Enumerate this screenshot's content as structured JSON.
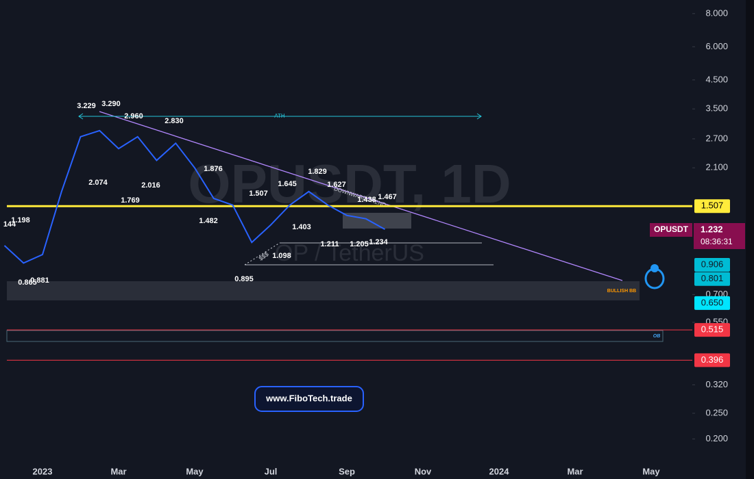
{
  "chart_data": {
    "type": "line",
    "watermark": "OPUSDT, 1D",
    "description": "OP / TetherUS",
    "website": "www.FiboTech.trade",
    "categories": [
      null,
      null,
      "2023",
      null,
      null,
      null,
      "Mar",
      null,
      null,
      null,
      "May",
      null,
      null,
      null,
      "Jul",
      null,
      null,
      null,
      "Sep",
      null,
      null,
      null,
      "Nov",
      null,
      null,
      null,
      "2024",
      null,
      null,
      null,
      "Mar",
      null,
      null,
      null,
      "May",
      null
    ],
    "series": [
      {
        "name": "OPUSDT",
        "color": "#2962ff",
        "values": [
          1.07,
          0.92,
          0.99,
          1.71,
          2.75,
          2.9,
          2.48,
          2.75,
          2.24,
          2.6,
          2.1,
          1.61,
          1.52,
          1.1,
          1.28,
          1.52,
          1.71,
          1.52,
          1.39,
          1.35,
          1.232,
          null,
          null,
          null,
          null,
          null,
          null,
          null,
          null,
          null,
          null,
          null,
          null,
          null,
          null,
          null
        ]
      }
    ],
    "log_scale": true,
    "ylim": [
      0.164,
      9.0
    ],
    "yticks": [
      {
        "value": 8,
        "label": "8.000"
      },
      {
        "value": 6,
        "label": "6.000"
      },
      {
        "value": 4.5,
        "label": "4.500"
      },
      {
        "value": 3.5,
        "label": "3.500"
      },
      {
        "value": 2.7,
        "label": "2.700"
      },
      {
        "value": 2.1,
        "label": "2.100"
      },
      {
        "value": 0.7,
        "label": "0.700"
      },
      {
        "value": 0.55,
        "label": "0.550"
      },
      {
        "value": 0.32,
        "label": "0.320"
      },
      {
        "value": 0.25,
        "label": "0.250"
      },
      {
        "value": 0.2,
        "label": "0.200"
      }
    ],
    "grid": false,
    "countdown": "08:36:31",
    "price_tags": [
      {
        "value": 1.507,
        "color": "#ffeb3b",
        "text_color": "#000000",
        "line": true
      },
      {
        "value": 0.906,
        "color": "#00bcd4",
        "text_color": "#131722",
        "line": false
      },
      {
        "value": 0.801,
        "color": "#00bcd4",
        "text_color": "#131722",
        "line": false
      },
      {
        "value": 0.65,
        "label": "0.650",
        "color": "#00e5ff",
        "text_color": "#131722",
        "line": false
      },
      {
        "value": 0.515,
        "color": "#f23645",
        "text_color": "#ffffff",
        "line": true
      },
      {
        "value": 0.396,
        "color": "#f23645",
        "text_color": "#ffffff",
        "line": true
      }
    ],
    "price_labels": [
      "1.198",
      "144",
      "0.865",
      "0.881",
      "3.229",
      "3.290",
      "2.960",
      "2.830",
      "2.074",
      "2.016",
      "1.769",
      "1.876",
      "1.482",
      "1.507",
      "1.645",
      "1.829",
      "1.627",
      "1.438",
      "1.467",
      "1.403",
      "1.211",
      "1.205",
      "1.234",
      "1.098",
      "0.895"
    ],
    "annotations": [
      "ATH",
      "DOWNWARD TREND",
      "BULLISH BB",
      "OB",
      "$$$"
    ]
  }
}
